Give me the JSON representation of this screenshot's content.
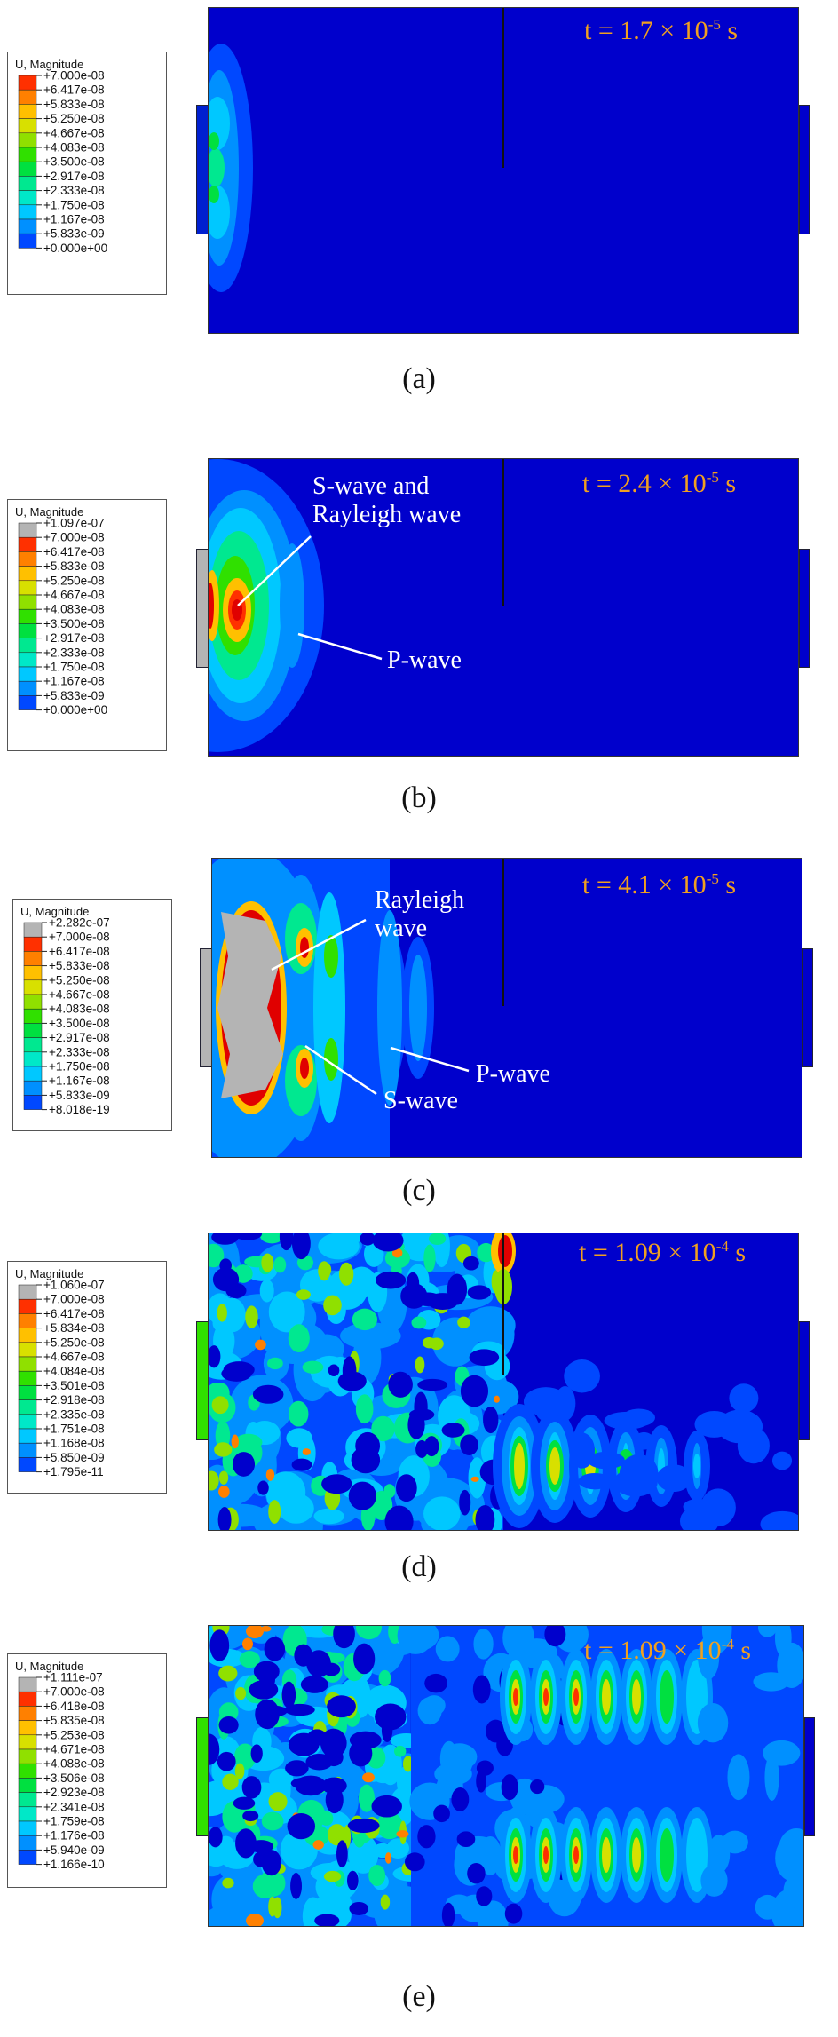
{
  "legend_title": "U, Magnitude",
  "colors": [
    "#0000cc",
    "#0048ff",
    "#0090ff",
    "#00c8ff",
    "#00e8c8",
    "#00e890",
    "#00e040",
    "#30e000",
    "#90e000",
    "#d8e000",
    "#ffc000",
    "#ff8000",
    "#ff3000",
    "#e00000",
    "#b4b4b4"
  ],
  "panels": [
    {
      "caption": "(a)",
      "time_label": {
        "prefix": "t = 1.7 × 10",
        "exp": "-5",
        "suffix": " s"
      },
      "legend_values": [
        "+7.000e-08",
        "+6.417e-08",
        "+5.833e-08",
        "+5.250e-08",
        "+4.667e-08",
        "+4.083e-08",
        "+3.500e-08",
        "+2.917e-08",
        "+2.333e-08",
        "+1.750e-08",
        "+1.167e-08",
        "+5.833e-09",
        "+0.000e+00"
      ],
      "has_overflow_bin": false,
      "annotations": []
    },
    {
      "caption": "(b)",
      "time_label": {
        "prefix": "t = 2.4 × 10",
        "exp": "-5",
        "suffix": " s"
      },
      "legend_values": [
        "+1.097e-07",
        "+7.000e-08",
        "+6.417e-08",
        "+5.833e-08",
        "+5.250e-08",
        "+4.667e-08",
        "+4.083e-08",
        "+3.500e-08",
        "+2.917e-08",
        "+2.333e-08",
        "+1.750e-08",
        "+1.167e-08",
        "+5.833e-09",
        "+0.000e+00"
      ],
      "has_overflow_bin": true,
      "annotations": [
        {
          "name": "s-and-rayleigh-wave-label",
          "lines": [
            "S-wave and",
            "Rayleigh wave"
          ]
        },
        {
          "name": "p-wave-label",
          "lines": [
            "P-wave"
          ]
        }
      ]
    },
    {
      "caption": "(c)",
      "time_label": {
        "prefix": "t = 4.1 × 10",
        "exp": "-5",
        "suffix": " s"
      },
      "legend_values": [
        "+2.282e-07",
        "+7.000e-08",
        "+6.417e-08",
        "+5.833e-08",
        "+5.250e-08",
        "+4.667e-08",
        "+4.083e-08",
        "+3.500e-08",
        "+2.917e-08",
        "+2.333e-08",
        "+1.750e-08",
        "+1.167e-08",
        "+5.833e-09",
        "+8.018e-19"
      ],
      "has_overflow_bin": true,
      "annotations": [
        {
          "name": "rayleigh-wave-label",
          "lines": [
            "Rayleigh",
            "wave"
          ]
        },
        {
          "name": "p-wave-label",
          "lines": [
            "P-wave"
          ]
        },
        {
          "name": "s-wave-label",
          "lines": [
            "S-wave"
          ]
        }
      ]
    },
    {
      "caption": "(d)",
      "time_label": {
        "prefix": "t = 1.09 × 10",
        "exp": "-4",
        "suffix": " s"
      },
      "legend_values": [
        "+1.060e-07",
        "+7.000e-08",
        "+6.417e-08",
        "+5.834e-08",
        "+5.250e-08",
        "+4.667e-08",
        "+4.084e-08",
        "+3.501e-08",
        "+2.918e-08",
        "+2.335e-08",
        "+1.751e-08",
        "+1.168e-08",
        "+5.850e-09",
        "+1.795e-11"
      ],
      "has_overflow_bin": true,
      "annotations": []
    },
    {
      "caption": "(e)",
      "time_label": {
        "prefix": "t = 1.09 × 10",
        "exp": "-4",
        "suffix": " s"
      },
      "legend_values": [
        "+1.111e-07",
        "+7.000e-08",
        "+6.418e-08",
        "+5.835e-08",
        "+5.253e-08",
        "+4.671e-08",
        "+4.088e-08",
        "+3.506e-08",
        "+2.923e-08",
        "+2.341e-08",
        "+1.759e-08",
        "+1.176e-08",
        "+5.940e-09",
        "+1.166e-10"
      ],
      "has_overflow_bin": true,
      "annotations": []
    }
  ]
}
